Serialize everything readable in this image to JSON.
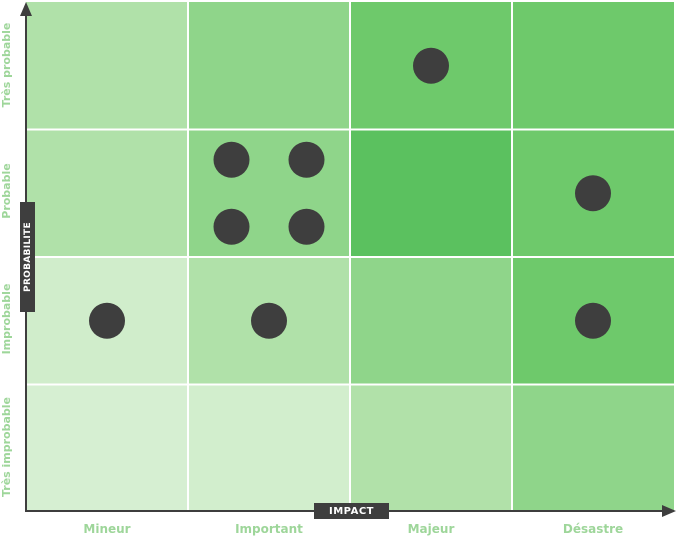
{
  "chart_data": {
    "type": "heatmap",
    "xlabel": "IMPACT",
    "ylabel": "PROBABILITE",
    "x_categories": [
      "Mineur",
      "Important",
      "Majeur",
      "Désastre"
    ],
    "y_categories": [
      "Très improbable",
      "Improbable",
      "Probable",
      "Très probable"
    ],
    "cells": [
      [
        "#d6efd2",
        "#d2eecd",
        "#b1e1a9",
        "#8fd58a"
      ],
      [
        "#d0edcb",
        "#b0e1a9",
        "#8fd58a",
        "#6ec96b"
      ],
      [
        "#b0e1a9",
        "#8fd58a",
        "#5bc15f",
        "#6ec96b"
      ],
      [
        "#b0e1a9",
        "#8fd58a",
        "#6ec96b",
        "#6ec96b"
      ]
    ],
    "risks": [
      {
        "impact": 2,
        "probability": 3,
        "slot": 0
      },
      {
        "impact": 1,
        "probability": 2,
        "slot": 1
      },
      {
        "impact": 1,
        "probability": 2,
        "slot": 2
      },
      {
        "impact": 1,
        "probability": 2,
        "slot": 3
      },
      {
        "impact": 1,
        "probability": 2,
        "slot": 4
      },
      {
        "impact": 3,
        "probability": 2,
        "slot": 0
      },
      {
        "impact": 0,
        "probability": 1,
        "slot": 0
      },
      {
        "impact": 1,
        "probability": 1,
        "slot": 0
      },
      {
        "impact": 3,
        "probability": 1,
        "slot": 0
      }
    ],
    "colors": {
      "marker": "#3e3e3e",
      "axis": "#3e3e3e",
      "grid": "#ffffff",
      "label": "#9ed69a"
    }
  }
}
